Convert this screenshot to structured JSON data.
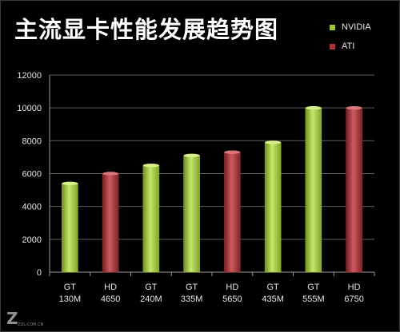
{
  "chart_data": {
    "type": "bar",
    "title": "主流显卡性能发展趋势图",
    "categories": [
      [
        "GT",
        "130M"
      ],
      [
        "HD",
        "4650"
      ],
      [
        "GT",
        "240M"
      ],
      [
        "GT",
        "335M"
      ],
      [
        "HD",
        "5650"
      ],
      [
        "GT",
        "435M"
      ],
      [
        "GT",
        "555M"
      ],
      [
        "HD",
        "6750"
      ]
    ],
    "values": [
      5400,
      6000,
      6500,
      7100,
      7300,
      7900,
      10000,
      10000
    ],
    "series_of_bar": [
      "NVIDIA",
      "ATI",
      "NVIDIA",
      "NVIDIA",
      "ATI",
      "NVIDIA",
      "NVIDIA",
      "ATI"
    ],
    "series": [
      {
        "name": "NVIDIA",
        "color": "#9cc33a"
      },
      {
        "name": "ATI",
        "color": "#a8363a"
      }
    ],
    "yticks": [
      0,
      2000,
      4000,
      6000,
      8000,
      10000,
      12000
    ],
    "ylim": [
      0,
      12000
    ],
    "grid": true,
    "legend_position": "top-right",
    "xlabel": "",
    "ylabel": ""
  },
  "watermark": "ZOL.COM.CN"
}
